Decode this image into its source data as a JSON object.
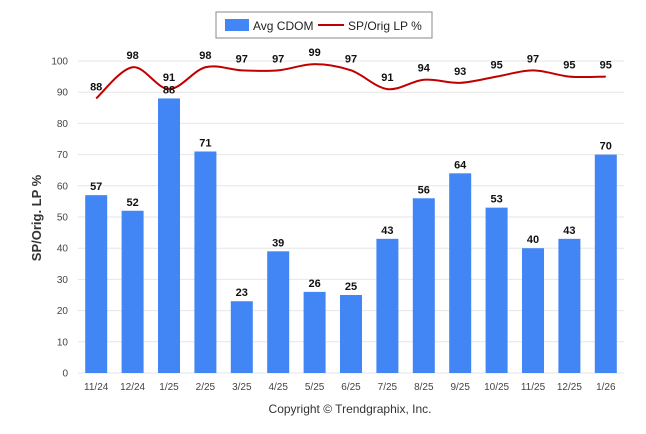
{
  "chart_data": {
    "type": "bar",
    "categories": [
      "11/24",
      "12/24",
      "1/25",
      "2/25",
      "3/25",
      "4/25",
      "5/25",
      "6/25",
      "7/25",
      "8/25",
      "9/25",
      "10/25",
      "11/25",
      "12/25",
      "1/26"
    ],
    "series": [
      {
        "name": "Avg CDOM",
        "kind": "bar",
        "color": "#4285f4",
        "values": [
          57,
          52,
          88,
          71,
          23,
          39,
          26,
          25,
          43,
          56,
          64,
          53,
          40,
          43,
          70
        ]
      },
      {
        "name": "SP/Orig LP %",
        "kind": "line",
        "color": "#c00000",
        "values": [
          88,
          98,
          91,
          98,
          97,
          97,
          99,
          97,
          91,
          94,
          93,
          95,
          97,
          95,
          95
        ]
      }
    ],
    "ylabel": "SP/Orig. LP %",
    "ylim": [
      0,
      100
    ],
    "yticks": [
      0,
      10,
      20,
      30,
      40,
      50,
      60,
      70,
      80,
      90,
      100
    ],
    "legend": "top-center",
    "grid": true
  },
  "footer": {
    "copyright": "Copyright © Trendgraphix, Inc."
  }
}
